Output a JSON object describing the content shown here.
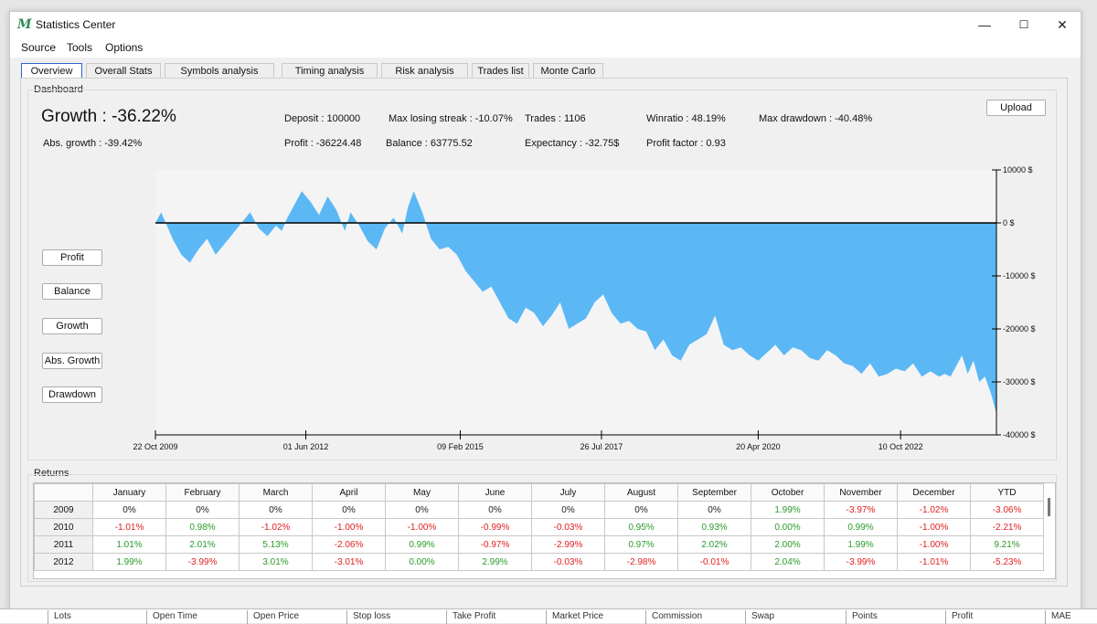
{
  "window": {
    "title": "Statistics Center",
    "logo": "M",
    "minimize": "—",
    "maximize": "☐",
    "close": "✕"
  },
  "menu": [
    "Source",
    "Tools",
    "Options"
  ],
  "tabs": [
    "Overview",
    "Overall Stats",
    "Symbols analysis",
    "Timing analysis",
    "Risk analysis",
    "Trades list",
    "Monte Carlo"
  ],
  "active_tab": "Overview",
  "dashboard": {
    "label": "Dashboard",
    "growth": "Growth :  -36.22%",
    "abs_growth": "Abs. growth :  -39.42%",
    "deposit": "Deposit :  100000",
    "profit": "Profit :  -36224.48",
    "max_losing_streak": "Max losing streak :  -10.07%",
    "balance": "Balance :  63775.52",
    "trades": "Trades :  1106",
    "expectancy": "Expectancy :  -32.75$",
    "winratio": "Winratio :  48.19%",
    "profit_factor": "Profit factor :  0.93",
    "max_drawdown": "Max drawdown :  -40.48%",
    "upload": "Upload"
  },
  "view_buttons": [
    "Profit",
    "Balance",
    "Growth",
    "Abs. Growth",
    "Drawdown"
  ],
  "colors": {
    "fill": "#5bb8f5",
    "zero_line": "#000000",
    "up": "#2a9a2a",
    "down": "#e02020"
  },
  "chart_data": {
    "type": "area",
    "ylim": [
      -40000,
      10000
    ],
    "y_ticks": [
      "10000 $",
      "0 $",
      "-10000 $",
      "-20000 $",
      "-30000 $",
      "-40000 $"
    ],
    "y_tick_values": [
      10000,
      0,
      -10000,
      -20000,
      -30000,
      -40000
    ],
    "x_ticks": [
      "22 Oct 2009",
      "01 Jun 2012",
      "09 Feb 2015",
      "26 Jul 2017",
      "20 Apr 2020",
      "10 Oct 2022"
    ],
    "x_tick_years": [
      2009.8,
      2012.42,
      2015.11,
      2017.57,
      2020.3,
      2022.78
    ],
    "xlim": [
      2009.8,
      2024.45
    ],
    "series": [
      {
        "name": "Profit",
        "x": [
          2009.8,
          2009.9,
          2010.1,
          2010.25,
          2010.4,
          2010.55,
          2010.7,
          2010.85,
          2011.0,
          2011.15,
          2011.3,
          2011.45,
          2011.6,
          2011.75,
          2011.9,
          2012.0,
          2012.1,
          2012.2,
          2012.35,
          2012.5,
          2012.65,
          2012.8,
          2012.95,
          2013.1,
          2013.2,
          2013.35,
          2013.5,
          2013.65,
          2013.8,
          2013.95,
          2014.1,
          2014.2,
          2014.3,
          2014.45,
          2014.6,
          2014.75,
          2014.9,
          2015.05,
          2015.2,
          2015.35,
          2015.5,
          2015.65,
          2015.8,
          2015.95,
          2016.1,
          2016.25,
          2016.4,
          2016.55,
          2016.7,
          2016.85,
          2017.0,
          2017.15,
          2017.3,
          2017.45,
          2017.6,
          2017.75,
          2017.9,
          2018.05,
          2018.2,
          2018.35,
          2018.5,
          2018.65,
          2018.8,
          2018.95,
          2019.1,
          2019.25,
          2019.4,
          2019.55,
          2019.7,
          2019.85,
          2020.0,
          2020.15,
          2020.3,
          2020.45,
          2020.6,
          2020.75,
          2020.9,
          2021.05,
          2021.2,
          2021.35,
          2021.5,
          2021.65,
          2021.8,
          2021.95,
          2022.1,
          2022.25,
          2022.4,
          2022.55,
          2022.7,
          2022.85,
          2023.0,
          2023.15,
          2023.3,
          2023.45,
          2023.55,
          2023.65,
          2023.75,
          2023.85,
          2023.95,
          2024.05,
          2024.15,
          2024.25,
          2024.35,
          2024.45
        ],
        "values": [
          0,
          2000,
          -3000,
          -6000,
          -7500,
          -5000,
          -3000,
          -6000,
          -4000,
          -2000,
          0,
          2000,
          -1000,
          -2500,
          -500,
          -1500,
          1000,
          3000,
          6000,
          4000,
          1500,
          5000,
          2500,
          -1500,
          2000,
          -500,
          -3500,
          -5000,
          -1000,
          1000,
          -2000,
          3000,
          6000,
          2000,
          -3000,
          -5000,
          -4500,
          -6000,
          -9000,
          -11000,
          -13000,
          -12000,
          -15000,
          -18000,
          -19000,
          -16000,
          -17000,
          -19500,
          -17500,
          -15000,
          -20000,
          -19000,
          -18000,
          -15000,
          -13500,
          -17000,
          -19000,
          -18500,
          -20000,
          -20500,
          -24000,
          -22000,
          -25000,
          -26000,
          -23000,
          -22000,
          -21000,
          -17500,
          -23000,
          -24000,
          -23500,
          -25000,
          -26000,
          -24500,
          -23000,
          -25000,
          -23500,
          -24000,
          -25500,
          -26000,
          -24000,
          -25000,
          -26500,
          -27000,
          -28500,
          -26500,
          -29000,
          -28500,
          -27500,
          -28000,
          -26500,
          -29000,
          -28000,
          -29000,
          -28500,
          -29000,
          -27000,
          -25000,
          -28500,
          -26000,
          -30000,
          -29000,
          -32000,
          -36000
        ]
      }
    ]
  },
  "returns": {
    "label": "Returns",
    "columns": [
      "",
      "January",
      "February",
      "March",
      "April",
      "May",
      "June",
      "July",
      "August",
      "September",
      "October",
      "November",
      "December",
      "YTD"
    ],
    "rows": [
      [
        "2009",
        "0%",
        "0%",
        "0%",
        "0%",
        "0%",
        "0%",
        "0%",
        "0%",
        "0%",
        "1.99%",
        "-3.97%",
        "-1.02%",
        "-3.06%"
      ],
      [
        "2010",
        "-1.01%",
        "0.98%",
        "-1.02%",
        "-1.00%",
        "-1.00%",
        "-0.99%",
        "-0.03%",
        "0.95%",
        "0.93%",
        "0.00%",
        "0.99%",
        "-1.00%",
        "-2.21%"
      ],
      [
        "2011",
        "1.01%",
        "2.01%",
        "5.13%",
        "-2.06%",
        "0.99%",
        "-0.97%",
        "-2.99%",
        "0.97%",
        "2.02%",
        "2.00%",
        "1.99%",
        "-1.00%",
        "9.21%"
      ],
      [
        "2012",
        "1.99%",
        "-3.99%",
        "3.01%",
        "-3.01%",
        "0.00%",
        "2.99%",
        "-0.03%",
        "-2.98%",
        "-0.01%",
        "2.04%",
        "-3.99%",
        "-1.01%",
        "-5.23%"
      ]
    ]
  },
  "bottom_columns": [
    "Lots",
    "Open Time",
    "Open Price",
    "Stop loss",
    "Take Profit",
    "Market Price",
    "Commission",
    "Swap",
    "Points",
    "Profit",
    "MAE"
  ]
}
